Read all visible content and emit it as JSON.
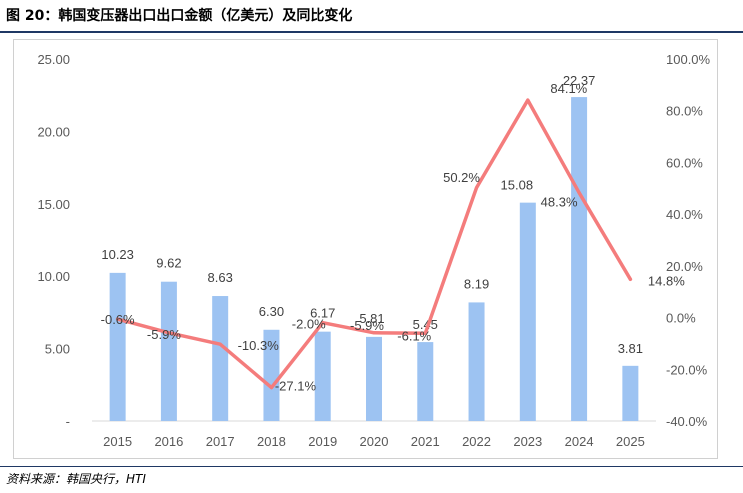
{
  "header": {
    "title": "图 20：韩国变压器出口出口金额（亿美元）及同比变化"
  },
  "footer": {
    "source": "资料来源：韩国央行，HTI"
  },
  "colors": {
    "bar": "#9dc3f2",
    "line": "#f47c7c",
    "rule": "#1f3864"
  },
  "chart_data": {
    "type": "bar",
    "categories": [
      "2015",
      "2016",
      "2017",
      "2018",
      "2019",
      "2020",
      "2021",
      "2022",
      "2023",
      "2024",
      "2025"
    ],
    "series": [
      {
        "type": "bar",
        "axis": "left",
        "values": [
          10.23,
          9.62,
          8.63,
          6.3,
          6.17,
          5.81,
          5.45,
          8.19,
          15.08,
          22.37,
          3.81
        ],
        "labels": [
          "10.23",
          "9.62",
          "8.63",
          "6.30",
          "6.17",
          "5.81",
          "5.45",
          "8.19",
          "15.08",
          "22.37",
          "3.81"
        ]
      },
      {
        "type": "line",
        "axis": "right",
        "values": [
          -0.6,
          -5.9,
          -10.3,
          -27.1,
          -2.0,
          -5.9,
          -6.1,
          50.2,
          84.1,
          48.3,
          14.8
        ],
        "labels": [
          "-0.6%",
          "-5.9%",
          "-10.3%",
          "-27.1%",
          "-2.0%",
          "-5.9%",
          "-6.1%",
          "50.2%",
          "84.1%",
          "48.3%",
          "14.8%"
        ]
      }
    ],
    "y_left": {
      "ylim": [
        0,
        25
      ],
      "ticks": [
        0,
        5,
        10,
        15,
        20,
        25
      ],
      "tick_labels": [
        "-",
        "5.00",
        "10.00",
        "15.00",
        "20.00",
        "25.00"
      ]
    },
    "y_right": {
      "ylim": [
        -40,
        100
      ],
      "ticks": [
        -40,
        -20,
        0,
        20,
        40,
        60,
        80,
        100
      ],
      "tick_labels": [
        "-40.0%",
        "-20.0%",
        "0.0%",
        "20.0%",
        "40.0%",
        "60.0%",
        "80.0%",
        "100.0%"
      ]
    },
    "grid": false,
    "legend": "none"
  }
}
